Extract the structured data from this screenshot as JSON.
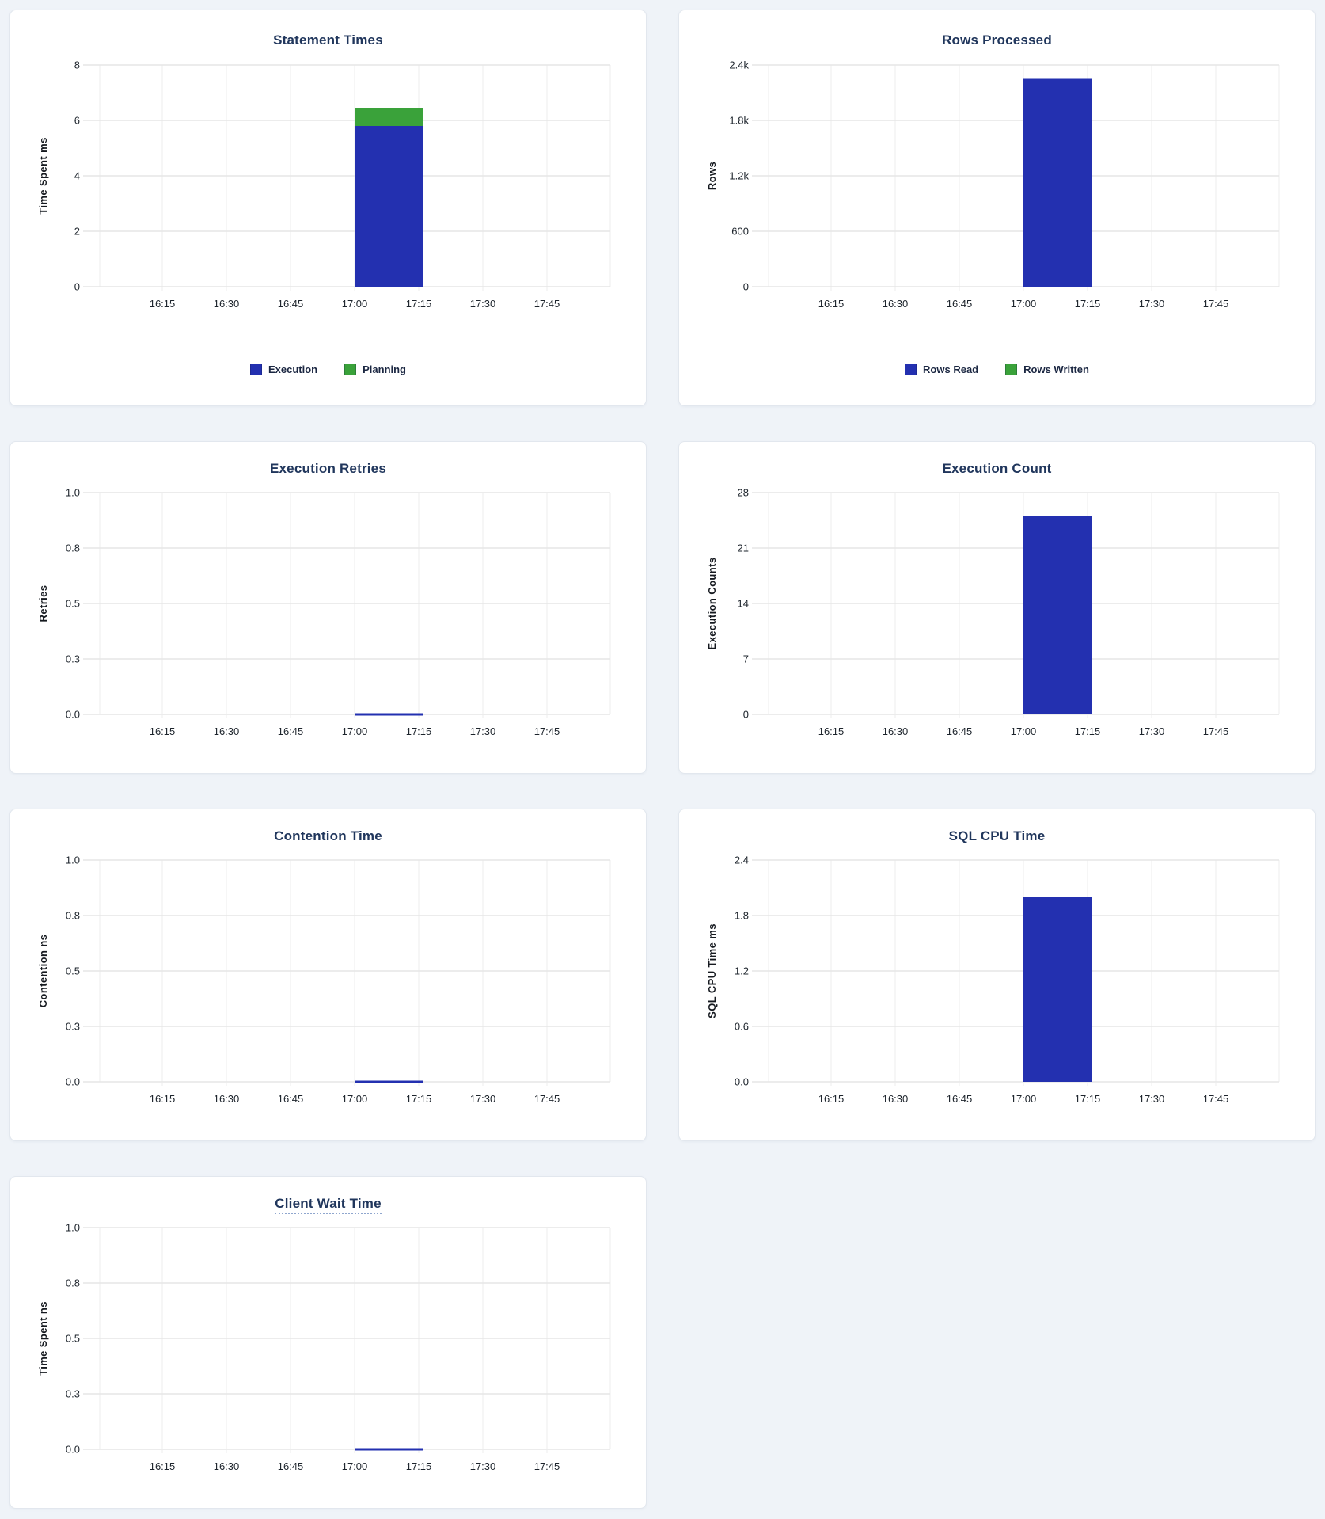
{
  "page": {
    "background": "#eff3f8",
    "card_background": "#ffffff",
    "card_border": "#e2e7ee",
    "title_color": "#20365c",
    "axis_text_color": "#1d242c",
    "grid_h": "#e6e6e6",
    "grid_v": "#ececec",
    "accent_blue": "#2330b0",
    "accent_green": "#3aa23a",
    "title_underline_color": "#8fa6ce"
  },
  "chart_data": [
    {
      "type": "bar",
      "title": "Statement Times",
      "ylabel": "Time Spent ms",
      "xlabel": "",
      "ylim": [
        0,
        8
      ],
      "yticks": [
        "8",
        "6",
        "4",
        "2",
        "0"
      ],
      "xticks": [
        "16:15",
        "16:30",
        "16:45",
        "17:00",
        "17:15",
        "17:30",
        "17:45"
      ],
      "grid": true,
      "stacked": true,
      "legend_position": "bottom",
      "show_legend": true,
      "series": [
        {
          "name": "Execution",
          "color": "#2330b0",
          "x": "17:00",
          "x_end": "17:15",
          "value": 5.8,
          "unit": "ms"
        },
        {
          "name": "Planning",
          "color": "#3aa23a",
          "x": "17:00",
          "x_end": "17:15",
          "value": 0.65,
          "unit": "ms"
        }
      ]
    },
    {
      "type": "bar",
      "title": "Rows Processed",
      "ylabel": "Rows",
      "xlabel": "",
      "ylim": [
        0,
        2400
      ],
      "yticks": [
        "2.4k",
        "1.8k",
        "1.2k",
        "600",
        "0"
      ],
      "xticks": [
        "16:15",
        "16:30",
        "16:45",
        "17:00",
        "17:15",
        "17:30",
        "17:45"
      ],
      "grid": true,
      "stacked": true,
      "legend_position": "bottom",
      "show_legend": true,
      "series": [
        {
          "name": "Rows Read",
          "color": "#2330b0",
          "x": "17:00",
          "x_end": "17:15",
          "value": 2250,
          "unit": "rows"
        },
        {
          "name": "Rows Written",
          "color": "#3aa23a",
          "x": "17:00",
          "x_end": "17:15",
          "value": 0,
          "unit": "rows"
        }
      ]
    },
    {
      "type": "bar",
      "title": "Execution Retries",
      "ylabel": "Retries",
      "xlabel": "",
      "ylim": [
        0,
        1
      ],
      "yticks": [
        "1.0",
        "0.8",
        "0.5",
        "0.3",
        "0.0"
      ],
      "xticks": [
        "16:15",
        "16:30",
        "16:45",
        "17:00",
        "17:15",
        "17:30",
        "17:45"
      ],
      "grid": true,
      "stacked": false,
      "legend_position": "none",
      "show_legend": false,
      "series": [
        {
          "name": "Retries",
          "color": "#2330b0",
          "x": "17:00",
          "x_end": "17:15",
          "value": 0,
          "unit": "retries"
        }
      ]
    },
    {
      "type": "bar",
      "title": "Execution Count",
      "ylabel": "Execution Counts",
      "xlabel": "",
      "ylim": [
        0,
        28
      ],
      "yticks": [
        "28",
        "21",
        "14",
        "7",
        "0"
      ],
      "xticks": [
        "16:15",
        "16:30",
        "16:45",
        "17:00",
        "17:15",
        "17:30",
        "17:45"
      ],
      "grid": true,
      "stacked": false,
      "legend_position": "none",
      "show_legend": false,
      "series": [
        {
          "name": "Execution Count",
          "color": "#2330b0",
          "x": "17:00",
          "x_end": "17:15",
          "value": 25,
          "unit": "executions"
        }
      ]
    },
    {
      "type": "bar",
      "title": "Contention Time",
      "ylabel": "Contention ns",
      "xlabel": "",
      "ylim": [
        0,
        1
      ],
      "yticks": [
        "1.0",
        "0.8",
        "0.5",
        "0.3",
        "0.0"
      ],
      "xticks": [
        "16:15",
        "16:30",
        "16:45",
        "17:00",
        "17:15",
        "17:30",
        "17:45"
      ],
      "grid": true,
      "stacked": false,
      "legend_position": "none",
      "show_legend": false,
      "series": [
        {
          "name": "Contention",
          "color": "#2330b0",
          "x": "17:00",
          "x_end": "17:15",
          "value": 0,
          "unit": "ns"
        }
      ]
    },
    {
      "type": "bar",
      "title": "SQL CPU Time",
      "ylabel": "SQL CPU Time ms",
      "xlabel": "",
      "ylim": [
        0,
        2.4
      ],
      "yticks": [
        "2.4",
        "1.8",
        "1.2",
        "0.6",
        "0.0"
      ],
      "xticks": [
        "16:15",
        "16:30",
        "16:45",
        "17:00",
        "17:15",
        "17:30",
        "17:45"
      ],
      "grid": true,
      "stacked": false,
      "legend_position": "none",
      "show_legend": false,
      "series": [
        {
          "name": "SQL CPU Time",
          "color": "#2330b0",
          "x": "17:00",
          "x_end": "17:15",
          "value": 2.0,
          "unit": "ms"
        }
      ]
    },
    {
      "type": "bar",
      "title": "Client Wait Time",
      "title_underlined": true,
      "ylabel": "Time Spent ns",
      "xlabel": "",
      "ylim": [
        0,
        1
      ],
      "yticks": [
        "1.0",
        "0.8",
        "0.5",
        "0.3",
        "0.0"
      ],
      "xticks": [
        "16:15",
        "16:30",
        "16:45",
        "17:00",
        "17:15",
        "17:30",
        "17:45"
      ],
      "grid": true,
      "stacked": false,
      "legend_position": "none",
      "show_legend": false,
      "series": [
        {
          "name": "Client Wait",
          "color": "#2330b0",
          "x": "17:00",
          "x_end": "17:15",
          "value": 0,
          "unit": "ns"
        }
      ]
    }
  ]
}
